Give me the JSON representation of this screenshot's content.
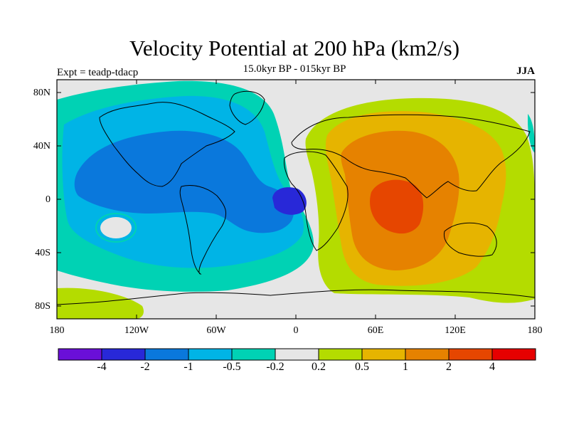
{
  "header": {
    "title": "Velocity Potential at 200 hPa (km2/s)",
    "subtitle": "15.0kyr BP - 015kyr BP",
    "experiment": "Expt = teadp-tdacp",
    "season": "JJA"
  },
  "axes": {
    "lat_labels": [
      "80N",
      "40N",
      "0",
      "40S",
      "80S"
    ],
    "lon_labels": [
      "180",
      "120W",
      "60W",
      "0",
      "60E",
      "120E",
      "180"
    ]
  },
  "colorbar": {
    "colors": [
      "#6a0fd8",
      "#2828d8",
      "#0a78dc",
      "#00b4e6",
      "#00d2b4",
      "#e6e6e6",
      "#b4dc00",
      "#e6b400",
      "#e68200",
      "#e64600",
      "#e60000"
    ],
    "labels": [
      "-4",
      "-2",
      "-1",
      "-0.5",
      "-0.2",
      "0.2",
      "0.5",
      "1",
      "2",
      "4"
    ]
  }
}
